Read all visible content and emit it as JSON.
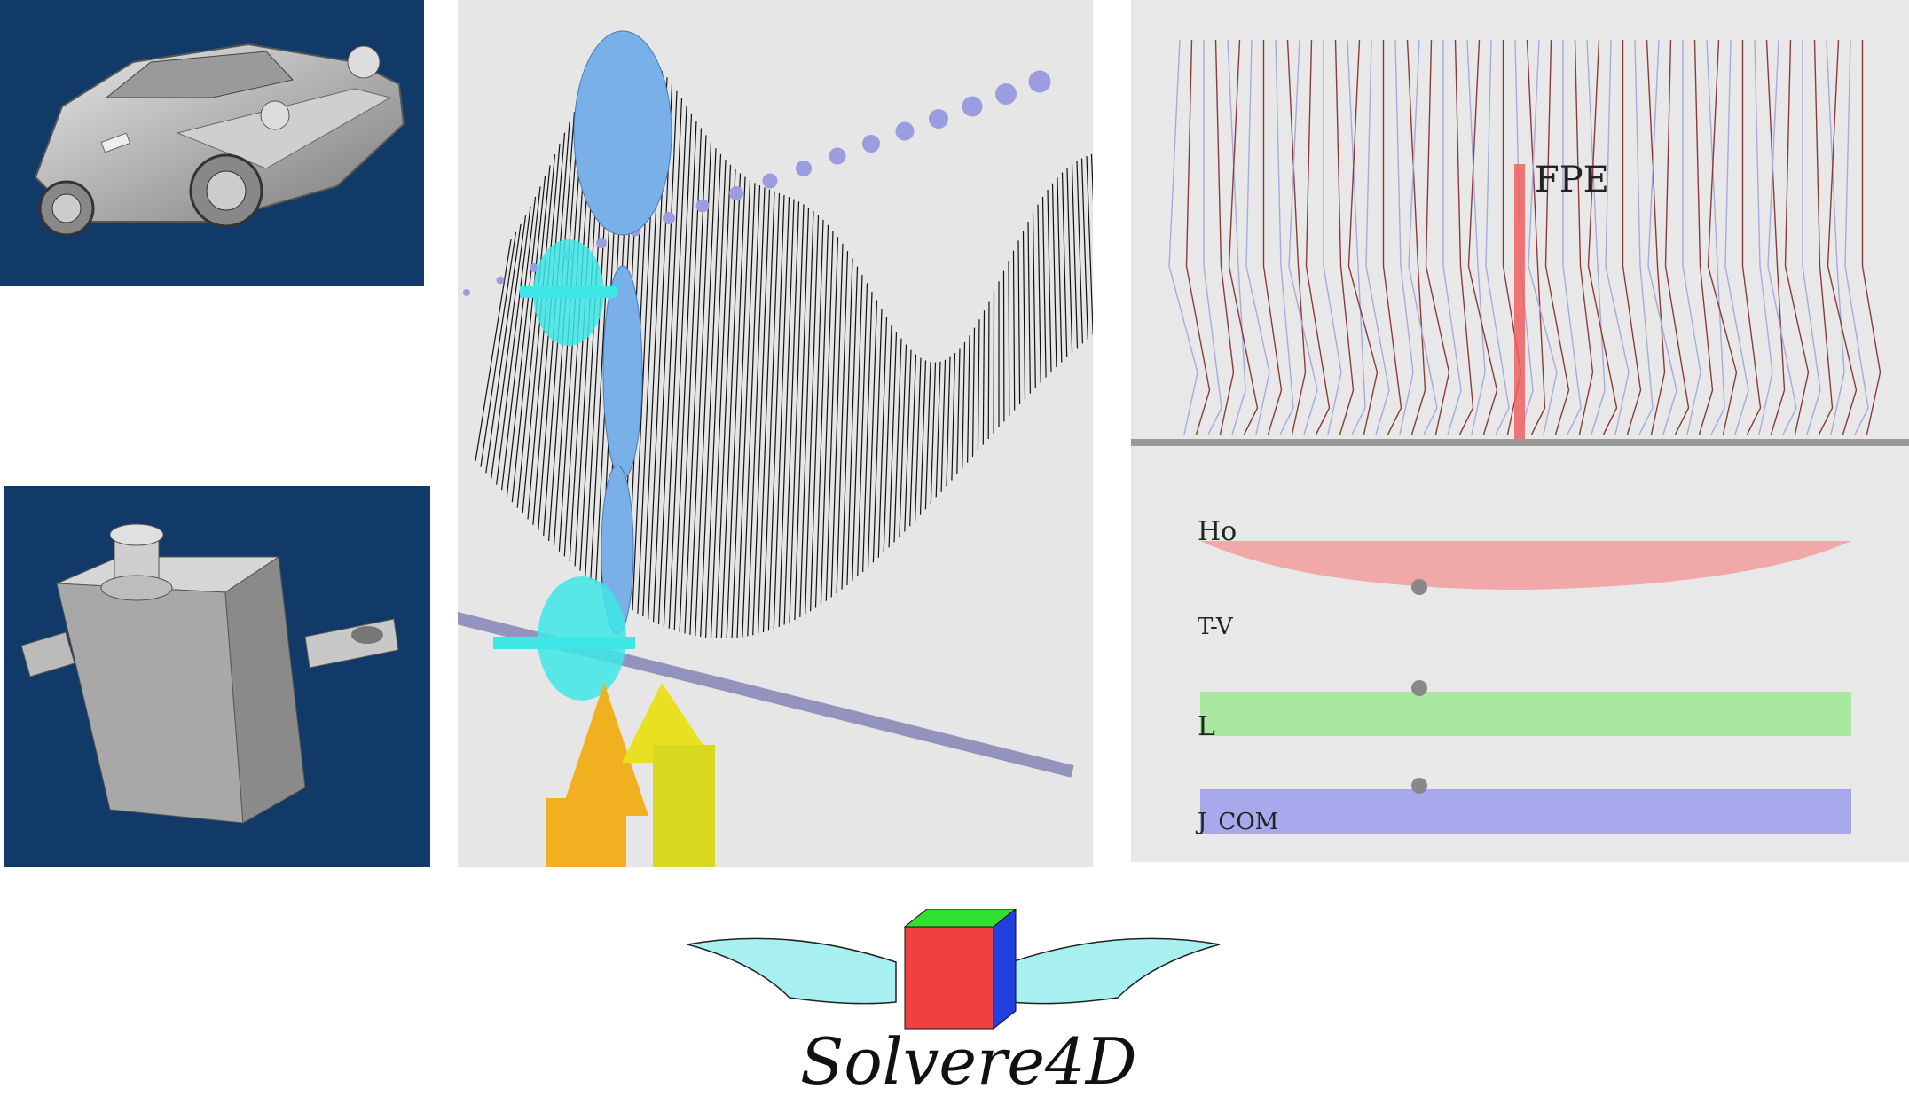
{
  "logo": {
    "text": "Solvere4D"
  },
  "force_plot": {
    "marker_label": "FPE",
    "bands": [
      {
        "label": "Ho",
        "color": "#f0a8a8"
      },
      {
        "label": "T-V",
        "color": "#a8e8a0"
      },
      {
        "label": "L",
        "color": "#a8a8ec"
      },
      {
        "label": "J_COM",
        "color": "#c8c8c8"
      }
    ]
  },
  "colors": {
    "viewport_background": "#123a68",
    "scene_background": "#e6e6e6",
    "body_blue": "#7ab0e8",
    "joint_cyan": "#3ee6e6",
    "force_yellow": "#e8d020"
  }
}
